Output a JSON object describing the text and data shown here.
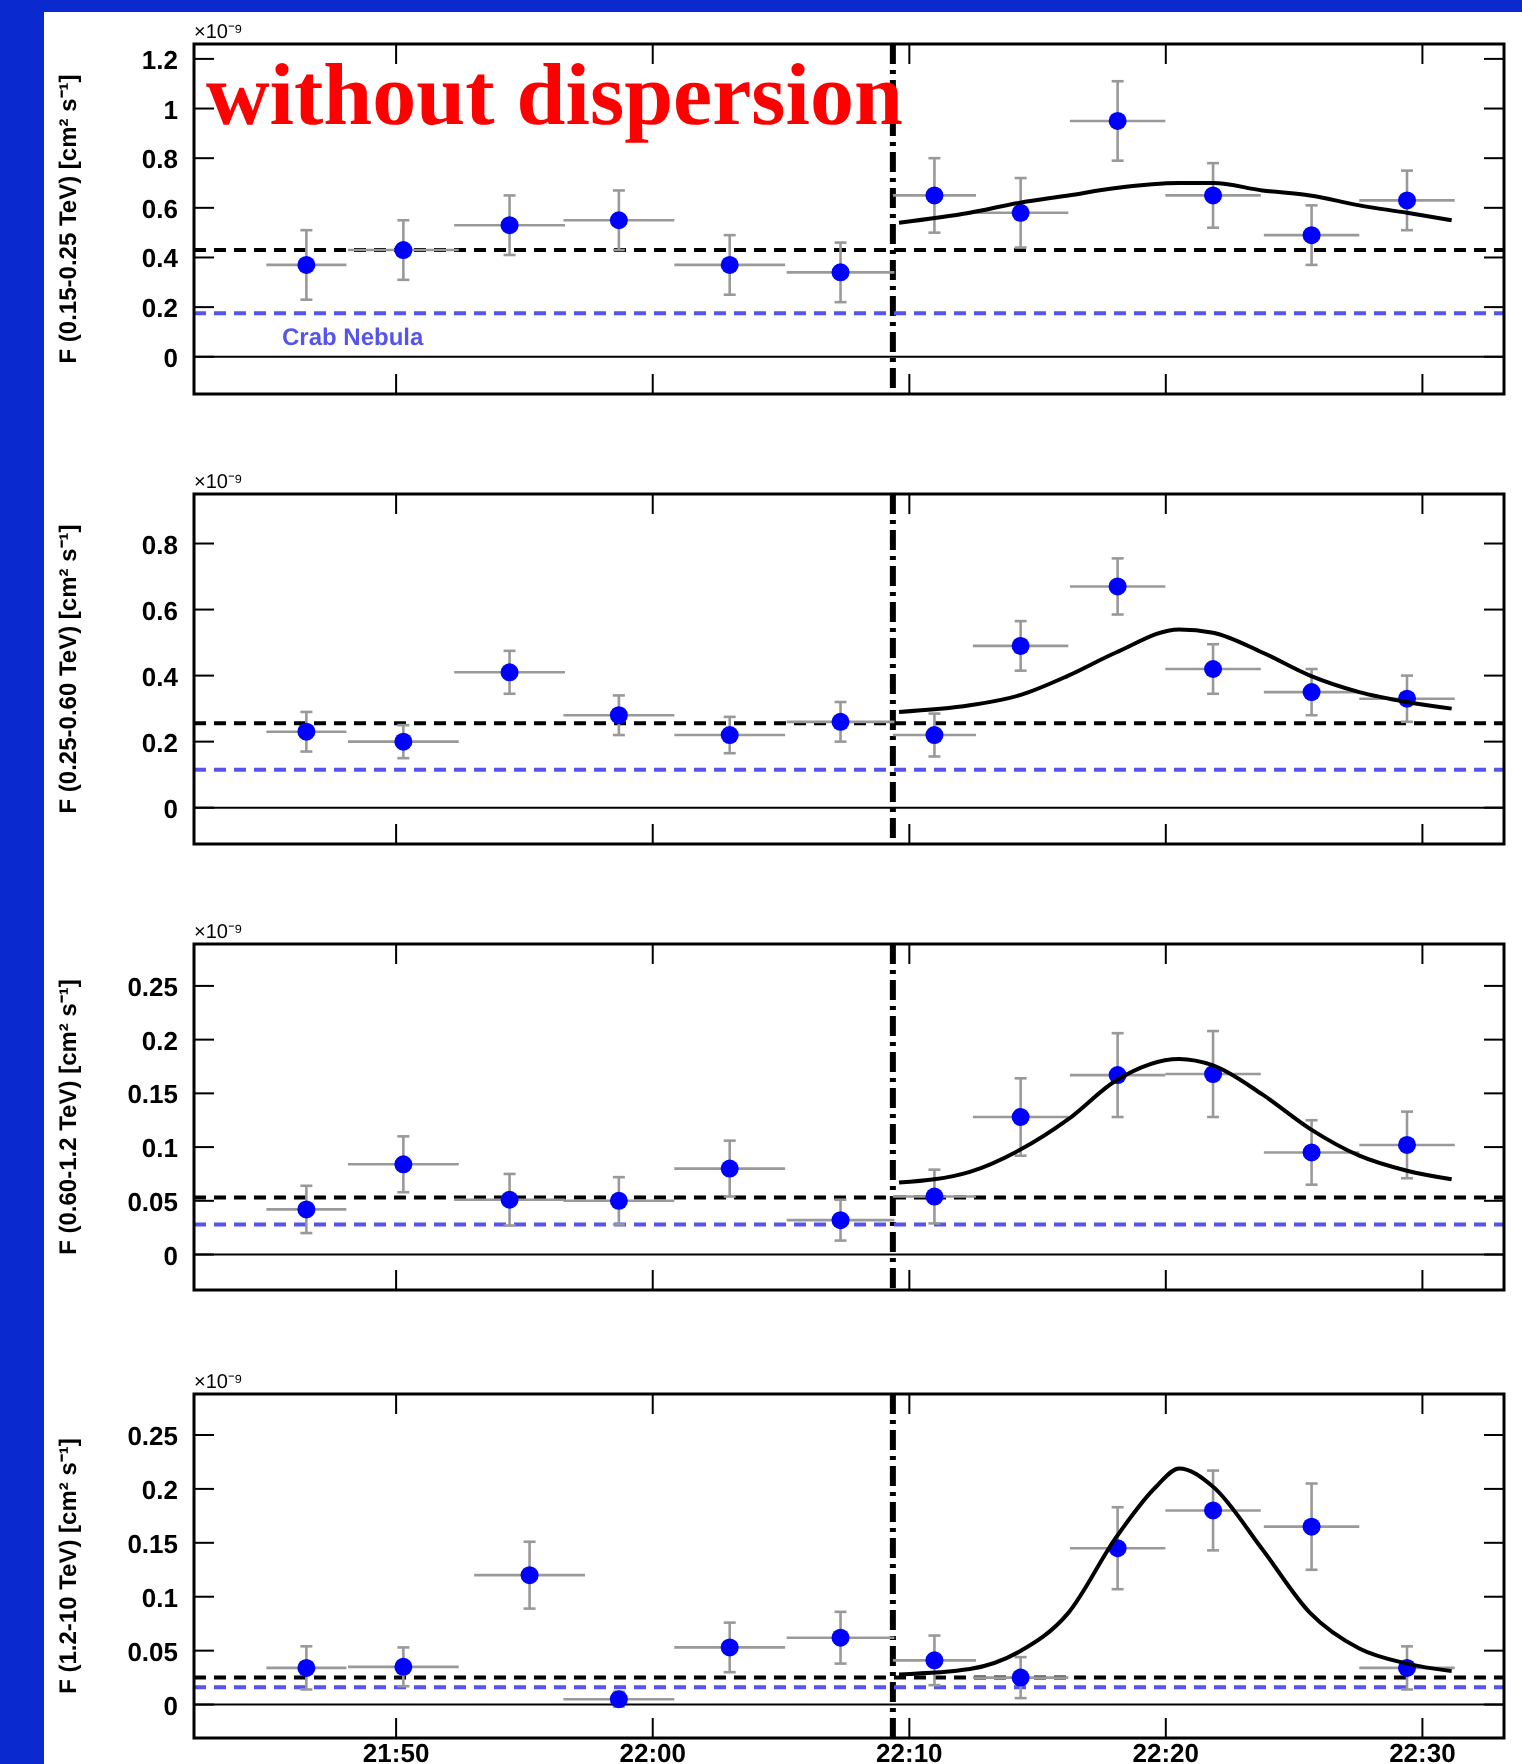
{
  "chart_data": [
    {
      "type": "scatter",
      "title": "without dispersion",
      "ylabel": "F (0.15-0.25 TeV) [cm² s⁻¹]",
      "annotations": [
        "×10⁻⁹"
      ],
      "xlim": [
        21.702,
        22.553
      ],
      "xticks": [
        {
          "value": 21.8333,
          "label": null
        },
        {
          "value": 22,
          "label": null
        },
        {
          "value": 22.1667,
          "label": null
        },
        {
          "value": 22.3333,
          "label": null
        },
        {
          "value": 22.5,
          "label": null
        }
      ],
      "ylim": [
        -0.15,
        1.26
      ],
      "yticks": [
        0,
        0.2,
        0.4,
        0.6,
        0.8,
        1,
        1.2
      ],
      "tick_labels": "y",
      "series": [
        {
          "type": "scatter",
          "marker": "circle",
          "color": "#0000ff",
          "x": [
            21.775,
            21.838,
            21.907,
            21.978,
            22.05,
            22.122,
            22.183,
            22.239,
            22.302,
            22.364,
            22.428,
            22.49
          ],
          "values": [
            0.37,
            0.43,
            0.53,
            0.55,
            0.37,
            0.34,
            0.65,
            0.58,
            0.95,
            0.65,
            0.49,
            0.63
          ],
          "errors": [
            0.14,
            0.12,
            0.12,
            0.12,
            0.12,
            0.12,
            0.15,
            0.14,
            0.16,
            0.13,
            0.12,
            0.12
          ],
          "xerrors": [
            0.026,
            0.036,
            0.036,
            0.036,
            0.036,
            0.035,
            0.027,
            0.031,
            0.031,
            0.031,
            0.031,
            0.031
          ]
        },
        {
          "type": "line",
          "marker": "none",
          "color": "#000000",
          "x": [
            22.16,
            22.206,
            22.238,
            22.27,
            22.301,
            22.342,
            22.364,
            22.396,
            22.427,
            22.459,
            22.49,
            22.519
          ],
          "values": [
            0.54,
            0.58,
            0.62,
            0.65,
            0.68,
            0.7,
            0.7,
            0.67,
            0.65,
            0.61,
            0.58,
            0.55
          ]
        }
      ],
      "ref_lines": [
        {
          "axis": "x",
          "value": 22.156,
          "color": "#000000",
          "line_style": "dashed"
        },
        {
          "axis": "y",
          "value": 0.43,
          "color": "#000000",
          "line_style": "dashed"
        },
        {
          "axis": "y",
          "value": 0.175,
          "label": "Crab Nebula",
          "color": "#5555ee",
          "line_style": "dashed"
        },
        {
          "axis": "y",
          "value": 0,
          "color": "#000000",
          "line_style": "solid"
        }
      ]
    },
    {
      "type": "scatter",
      "ylabel": "F (0.25-0.60 TeV) [cm² s⁻¹]",
      "annotations": [
        "×10⁻⁹"
      ],
      "xlim": [
        21.702,
        22.553
      ],
      "xticks": [
        {
          "value": 21.8333,
          "label": null
        },
        {
          "value": 22,
          "label": null
        },
        {
          "value": 22.1667,
          "label": null
        },
        {
          "value": 22.3333,
          "label": null
        },
        {
          "value": 22.5,
          "label": null
        }
      ],
      "ylim": [
        -0.11,
        0.95
      ],
      "yticks": [
        0,
        0.2,
        0.4,
        0.6,
        0.8
      ],
      "tick_labels": "y",
      "series": [
        {
          "type": "scatter",
          "marker": "circle",
          "color": "#0000ff",
          "x": [
            21.775,
            21.838,
            21.907,
            21.978,
            22.05,
            22.122,
            22.183,
            22.239,
            22.302,
            22.364,
            22.428,
            22.49
          ],
          "values": [
            0.23,
            0.2,
            0.41,
            0.28,
            0.22,
            0.26,
            0.22,
            0.49,
            0.67,
            0.42,
            0.35,
            0.33
          ],
          "errors": [
            0.06,
            0.05,
            0.065,
            0.06,
            0.055,
            0.06,
            0.065,
            0.075,
            0.085,
            0.075,
            0.07,
            0.07
          ],
          "xerrors": [
            0.026,
            0.036,
            0.036,
            0.036,
            0.036,
            0.035,
            0.027,
            0.031,
            0.031,
            0.031,
            0.031,
            0.031
          ]
        },
        {
          "type": "line",
          "marker": "none",
          "color": "#000000",
          "x": [
            22.16,
            22.206,
            22.238,
            22.27,
            22.301,
            22.342,
            22.364,
            22.396,
            22.427,
            22.459,
            22.49,
            22.519
          ],
          "values": [
            0.29,
            0.31,
            0.34,
            0.4,
            0.47,
            0.54,
            0.53,
            0.47,
            0.4,
            0.35,
            0.32,
            0.3
          ]
        }
      ],
      "ref_lines": [
        {
          "axis": "x",
          "value": 22.156,
          "color": "#000000",
          "line_style": "dashed"
        },
        {
          "axis": "y",
          "value": 0.256,
          "color": "#000000",
          "line_style": "dashed"
        },
        {
          "axis": "y",
          "value": 0.115,
          "color": "#5555ee",
          "line_style": "dashed"
        },
        {
          "axis": "y",
          "value": 0,
          "color": "#000000",
          "line_style": "solid"
        }
      ]
    },
    {
      "type": "scatter",
      "ylabel": "F (0.60-1.2 TeV) [cm² s⁻¹]",
      "annotations": [
        "×10⁻⁹"
      ],
      "xlim": [
        21.702,
        22.553
      ],
      "xticks": [
        {
          "value": 21.8333,
          "label": null
        },
        {
          "value": 22,
          "label": null
        },
        {
          "value": 22.1667,
          "label": null
        },
        {
          "value": 22.3333,
          "label": null
        },
        {
          "value": 22.5,
          "label": null
        }
      ],
      "ylim": [
        -0.033,
        0.289
      ],
      "yticks": [
        0,
        0.05,
        0.1,
        0.15,
        0.2,
        0.25
      ],
      "tick_labels": "y",
      "series": [
        {
          "type": "scatter",
          "marker": "circle",
          "color": "#0000ff",
          "x": [
            21.775,
            21.838,
            21.907,
            21.978,
            22.05,
            22.122,
            22.183,
            22.239,
            22.302,
            22.364,
            22.428,
            22.49
          ],
          "values": [
            0.042,
            0.084,
            0.051,
            0.05,
            0.08,
            0.032,
            0.054,
            0.128,
            0.167,
            0.168,
            0.095,
            0.102
          ],
          "errors": [
            0.022,
            0.026,
            0.024,
            0.022,
            0.026,
            0.019,
            0.025,
            0.036,
            0.039,
            0.04,
            0.03,
            0.031
          ],
          "xerrors": [
            0.026,
            0.036,
            0.036,
            0.036,
            0.036,
            0.035,
            0.027,
            0.031,
            0.031,
            0.031,
            0.031,
            0.031
          ]
        },
        {
          "type": "line",
          "marker": "none",
          "color": "#000000",
          "x": [
            22.16,
            22.206,
            22.238,
            22.27,
            22.301,
            22.342,
            22.364,
            22.396,
            22.427,
            22.459,
            22.49,
            22.519
          ],
          "values": [
            0.067,
            0.077,
            0.097,
            0.126,
            0.162,
            0.182,
            0.176,
            0.149,
            0.117,
            0.092,
            0.078,
            0.07
          ]
        }
      ],
      "ref_lines": [
        {
          "axis": "x",
          "value": 22.156,
          "color": "#000000",
          "line_style": "dashed"
        },
        {
          "axis": "y",
          "value": 0.053,
          "color": "#000000",
          "line_style": "dashed"
        },
        {
          "axis": "y",
          "value": 0.028,
          "color": "#5555ee",
          "line_style": "dashed"
        },
        {
          "axis": "y",
          "value": 0,
          "color": "#000000",
          "line_style": "solid"
        }
      ]
    },
    {
      "type": "scatter",
      "ylabel": "F (1.2-10 TeV) [cm² s⁻¹]",
      "annotations": [
        "×10⁻⁹"
      ],
      "xlim": [
        21.702,
        22.553
      ],
      "xticks": [
        {
          "value": 21.8333,
          "label": "21:50"
        },
        {
          "value": 22,
          "label": "22:00"
        },
        {
          "value": 22.1667,
          "label": "22:10"
        },
        {
          "value": 22.3333,
          "label": "22:20"
        },
        {
          "value": 22.5,
          "label": "22:30"
        }
      ],
      "ylim": [
        -0.031,
        0.288
      ],
      "yticks": [
        0,
        0.05,
        0.1,
        0.15,
        0.2,
        0.25
      ],
      "series": [
        {
          "type": "scatter",
          "marker": "circle",
          "color": "#0000ff",
          "x": [
            21.775,
            21.838,
            21.92,
            21.978,
            22.05,
            22.122,
            22.183,
            22.239,
            22.302,
            22.364,
            22.428,
            22.49
          ],
          "values": [
            0.034,
            0.035,
            0.12,
            0.005,
            0.053,
            0.062,
            0.041,
            0.025,
            0.145,
            0.18,
            0.165,
            0.034
          ],
          "errors": [
            0.02,
            0.018,
            0.031,
            0.007,
            0.023,
            0.024,
            0.023,
            0.019,
            0.038,
            0.037,
            0.04,
            0.02
          ],
          "xerrors": [
            0.026,
            0.036,
            0.036,
            0.036,
            0.036,
            0.035,
            0.027,
            0.031,
            0.031,
            0.031,
            0.031,
            0.031
          ]
        },
        {
          "type": "line",
          "marker": "none",
          "color": "#000000",
          "x": [
            22.16,
            22.206,
            22.238,
            22.27,
            22.301,
            22.327,
            22.342,
            22.364,
            22.396,
            22.427,
            22.459,
            22.49,
            22.519
          ],
          "values": [
            0.028,
            0.033,
            0.049,
            0.085,
            0.155,
            0.202,
            0.219,
            0.202,
            0.144,
            0.085,
            0.052,
            0.038,
            0.031
          ]
        }
      ],
      "ref_lines": [
        {
          "axis": "x",
          "value": 22.156,
          "color": "#000000",
          "line_style": "dashed"
        },
        {
          "axis": "y",
          "value": 0.025,
          "color": "#000000",
          "line_style": "dashed"
        },
        {
          "axis": "y",
          "value": 0.016,
          "color": "#5555ee",
          "line_style": "dashed"
        },
        {
          "axis": "y",
          "value": 0,
          "color": "#000000",
          "line_style": "solid"
        }
      ]
    }
  ]
}
